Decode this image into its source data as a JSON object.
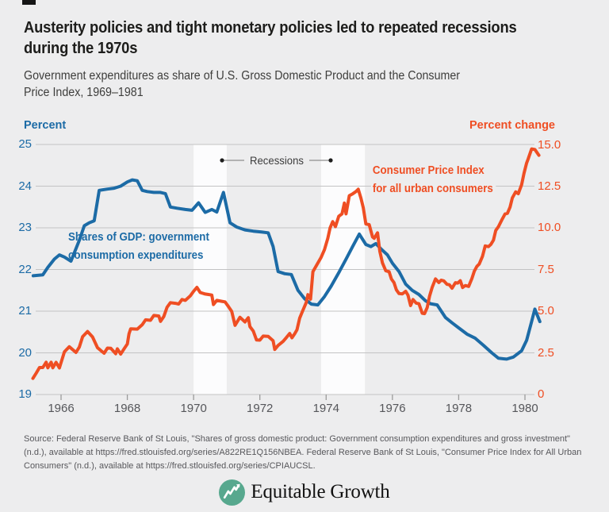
{
  "chart_data": {
    "type": "line",
    "title": "Austerity policies and tight monetary policies led to repeated recessions\nduring the 1970s",
    "subtitle": "Government expenditures as share of U.S. Gross Domestic Product and the Consumer\nPrice Index, 1969–1981",
    "grid": true,
    "legend_position": "annotated-on-plot",
    "x_axis": {
      "ticks": [
        1966,
        1968,
        1970,
        1972,
        1974,
        1976,
        1978,
        1980
      ],
      "range": [
        1965.1,
        1980.6
      ]
    },
    "left_axis": {
      "label": "Percent",
      "ticks": [
        25,
        24,
        23,
        22,
        21,
        20,
        19
      ],
      "range": [
        19,
        25
      ],
      "color": "#1c6ba6"
    },
    "right_axis": {
      "label": "Percent change",
      "ticks": [
        "15.0",
        "12.5",
        "10.0",
        "7.5",
        "5.0",
        "2.5",
        "0"
      ],
      "range": [
        0,
        15
      ],
      "color": "#ef4e23"
    },
    "recession_bands": [
      [
        1970.0,
        1971.0
      ],
      [
        1973.85,
        1975.17
      ]
    ],
    "annotations": {
      "recessions_label": "Recessions",
      "gdp_label": "Shares of GDP: government\nconsumption expenditures",
      "cpi_label": "Consumer Price Index\nfor all urban consumers"
    },
    "series": [
      {
        "name": "Shares of GDP: government consumption expenditures",
        "axis": "left",
        "color": "#1c6ba6",
        "data": [
          [
            1965.16,
            21.85
          ],
          [
            1965.45,
            21.87
          ],
          [
            1965.6,
            22.05
          ],
          [
            1965.8,
            22.25
          ],
          [
            1965.95,
            22.35
          ],
          [
            1966.1,
            22.3
          ],
          [
            1966.3,
            22.2
          ],
          [
            1966.55,
            22.7
          ],
          [
            1966.7,
            23.05
          ],
          [
            1966.85,
            23.12
          ],
          [
            1967.0,
            23.17
          ],
          [
            1967.15,
            23.9
          ],
          [
            1967.4,
            23.93
          ],
          [
            1967.6,
            23.95
          ],
          [
            1967.8,
            24.0
          ],
          [
            1968.0,
            24.1
          ],
          [
            1968.15,
            24.15
          ],
          [
            1968.3,
            24.13
          ],
          [
            1968.45,
            23.9
          ],
          [
            1968.6,
            23.87
          ],
          [
            1968.8,
            23.85
          ],
          [
            1969.0,
            23.85
          ],
          [
            1969.15,
            23.82
          ],
          [
            1969.3,
            23.5
          ],
          [
            1969.5,
            23.47
          ],
          [
            1969.75,
            23.44
          ],
          [
            1969.95,
            23.42
          ],
          [
            1970.15,
            23.6
          ],
          [
            1970.35,
            23.37
          ],
          [
            1970.55,
            23.44
          ],
          [
            1970.7,
            23.38
          ],
          [
            1970.9,
            23.85
          ],
          [
            1971.1,
            23.12
          ],
          [
            1971.3,
            23.02
          ],
          [
            1971.55,
            22.95
          ],
          [
            1971.8,
            22.92
          ],
          [
            1972.05,
            22.9
          ],
          [
            1972.25,
            22.88
          ],
          [
            1972.4,
            22.55
          ],
          [
            1972.55,
            21.95
          ],
          [
            1972.75,
            21.9
          ],
          [
            1972.95,
            21.88
          ],
          [
            1973.15,
            21.5
          ],
          [
            1973.35,
            21.3
          ],
          [
            1973.55,
            21.17
          ],
          [
            1973.75,
            21.15
          ],
          [
            1973.95,
            21.35
          ],
          [
            1974.15,
            21.6
          ],
          [
            1974.4,
            21.95
          ],
          [
            1974.6,
            22.25
          ],
          [
            1974.8,
            22.55
          ],
          [
            1975.0,
            22.85
          ],
          [
            1975.2,
            22.6
          ],
          [
            1975.35,
            22.55
          ],
          [
            1975.5,
            22.62
          ],
          [
            1975.65,
            22.5
          ],
          [
            1975.85,
            22.35
          ],
          [
            1976.0,
            22.15
          ],
          [
            1976.2,
            21.95
          ],
          [
            1976.4,
            21.65
          ],
          [
            1976.6,
            21.5
          ],
          [
            1976.8,
            21.4
          ],
          [
            1977.0,
            21.25
          ],
          [
            1977.15,
            21.18
          ],
          [
            1977.35,
            21.15
          ],
          [
            1977.6,
            20.85
          ],
          [
            1977.8,
            20.72
          ],
          [
            1978.0,
            20.6
          ],
          [
            1978.25,
            20.45
          ],
          [
            1978.5,
            20.35
          ],
          [
            1978.75,
            20.18
          ],
          [
            1979.0,
            20.0
          ],
          [
            1979.2,
            19.87
          ],
          [
            1979.45,
            19.85
          ],
          [
            1979.65,
            19.9
          ],
          [
            1979.9,
            20.05
          ],
          [
            1980.05,
            20.3
          ],
          [
            1980.2,
            20.75
          ],
          [
            1980.3,
            21.05
          ],
          [
            1980.45,
            20.75
          ]
        ]
      },
      {
        "name": "Consumer Price Index for all urban consumers",
        "axis": "right",
        "color": "#ef4e23",
        "data": [
          [
            1965.15,
            0.97
          ],
          [
            1965.25,
            1.29
          ],
          [
            1965.35,
            1.62
          ],
          [
            1965.45,
            1.62
          ],
          [
            1965.55,
            1.94
          ],
          [
            1965.6,
            1.61
          ],
          [
            1965.7,
            1.94
          ],
          [
            1965.75,
            1.61
          ],
          [
            1965.85,
            1.93
          ],
          [
            1965.95,
            1.6
          ],
          [
            1966.0,
            1.92
          ],
          [
            1966.1,
            2.56
          ],
          [
            1966.25,
            2.87
          ],
          [
            1966.45,
            2.53
          ],
          [
            1966.55,
            2.85
          ],
          [
            1966.65,
            3.48
          ],
          [
            1966.8,
            3.79
          ],
          [
            1966.95,
            3.46
          ],
          [
            1967.1,
            2.81
          ],
          [
            1967.3,
            2.48
          ],
          [
            1967.4,
            2.79
          ],
          [
            1967.5,
            2.78
          ],
          [
            1967.65,
            2.45
          ],
          [
            1967.7,
            2.75
          ],
          [
            1967.8,
            2.43
          ],
          [
            1967.9,
            2.74
          ],
          [
            1968.0,
            3.04
          ],
          [
            1968.05,
            3.65
          ],
          [
            1968.1,
            3.95
          ],
          [
            1968.3,
            3.93
          ],
          [
            1968.45,
            4.2
          ],
          [
            1968.55,
            4.49
          ],
          [
            1968.7,
            4.46
          ],
          [
            1968.8,
            4.75
          ],
          [
            1968.95,
            4.72
          ],
          [
            1969.0,
            4.4
          ],
          [
            1969.1,
            4.68
          ],
          [
            1969.2,
            5.25
          ],
          [
            1969.3,
            5.52
          ],
          [
            1969.45,
            5.48
          ],
          [
            1969.55,
            5.44
          ],
          [
            1969.65,
            5.71
          ],
          [
            1969.75,
            5.66
          ],
          [
            1969.9,
            5.93
          ],
          [
            1970.0,
            6.2
          ],
          [
            1970.1,
            6.44
          ],
          [
            1970.2,
            6.13
          ],
          [
            1970.35,
            6.04
          ],
          [
            1970.45,
            6.01
          ],
          [
            1970.55,
            5.98
          ],
          [
            1970.6,
            5.41
          ],
          [
            1970.7,
            5.66
          ],
          [
            1970.85,
            5.6
          ],
          [
            1970.95,
            5.57
          ],
          [
            1971.05,
            5.29
          ],
          [
            1971.15,
            5.0
          ],
          [
            1971.25,
            4.16
          ],
          [
            1971.4,
            4.64
          ],
          [
            1971.55,
            4.36
          ],
          [
            1971.65,
            4.62
          ],
          [
            1971.7,
            4.08
          ],
          [
            1971.8,
            3.81
          ],
          [
            1971.9,
            3.28
          ],
          [
            1972.0,
            3.27
          ],
          [
            1972.1,
            3.51
          ],
          [
            1972.25,
            3.49
          ],
          [
            1972.4,
            3.23
          ],
          [
            1972.45,
            2.71
          ],
          [
            1972.55,
            2.95
          ],
          [
            1972.7,
            3.19
          ],
          [
            1972.8,
            3.42
          ],
          [
            1972.9,
            3.67
          ],
          [
            1972.97,
            3.41
          ],
          [
            1973.05,
            3.65
          ],
          [
            1973.12,
            3.89
          ],
          [
            1973.2,
            4.59
          ],
          [
            1973.3,
            5.06
          ],
          [
            1973.4,
            5.53
          ],
          [
            1973.45,
            6.0
          ],
          [
            1973.53,
            5.73
          ],
          [
            1973.6,
            7.38
          ],
          [
            1973.72,
            7.8
          ],
          [
            1973.85,
            8.25
          ],
          [
            1973.95,
            8.71
          ],
          [
            1974.05,
            9.39
          ],
          [
            1974.12,
            10.02
          ],
          [
            1974.2,
            10.39
          ],
          [
            1974.28,
            10.09
          ],
          [
            1974.38,
            10.71
          ],
          [
            1974.48,
            10.86
          ],
          [
            1974.55,
            11.51
          ],
          [
            1974.6,
            10.86
          ],
          [
            1974.7,
            11.95
          ],
          [
            1974.8,
            12.06
          ],
          [
            1974.9,
            12.2
          ],
          [
            1974.97,
            12.34
          ],
          [
            1975.05,
            11.8
          ],
          [
            1975.12,
            11.23
          ],
          [
            1975.2,
            10.25
          ],
          [
            1975.3,
            10.21
          ],
          [
            1975.4,
            9.47
          ],
          [
            1975.45,
            9.39
          ],
          [
            1975.55,
            9.72
          ],
          [
            1975.62,
            8.6
          ],
          [
            1975.7,
            7.91
          ],
          [
            1975.8,
            7.44
          ],
          [
            1975.9,
            7.38
          ],
          [
            1975.97,
            6.94
          ],
          [
            1976.05,
            6.72
          ],
          [
            1976.12,
            6.29
          ],
          [
            1976.2,
            6.07
          ],
          [
            1976.3,
            6.05
          ],
          [
            1976.4,
            6.2
          ],
          [
            1976.47,
            5.97
          ],
          [
            1976.55,
            5.35
          ],
          [
            1976.62,
            5.71
          ],
          [
            1976.72,
            5.49
          ],
          [
            1976.8,
            5.46
          ],
          [
            1976.9,
            4.88
          ],
          [
            1976.97,
            4.86
          ],
          [
            1977.05,
            5.22
          ],
          [
            1977.12,
            5.91
          ],
          [
            1977.2,
            6.44
          ],
          [
            1977.3,
            6.95
          ],
          [
            1977.4,
            6.73
          ],
          [
            1977.47,
            6.87
          ],
          [
            1977.55,
            6.83
          ],
          [
            1977.65,
            6.62
          ],
          [
            1977.72,
            6.6
          ],
          [
            1977.8,
            6.39
          ],
          [
            1977.9,
            6.72
          ],
          [
            1977.97,
            6.7
          ],
          [
            1978.05,
            6.84
          ],
          [
            1978.12,
            6.43
          ],
          [
            1978.2,
            6.55
          ],
          [
            1978.3,
            6.5
          ],
          [
            1978.4,
            6.97
          ],
          [
            1978.47,
            7.41
          ],
          [
            1978.55,
            7.7
          ],
          [
            1978.62,
            7.84
          ],
          [
            1978.72,
            8.31
          ],
          [
            1978.8,
            8.93
          ],
          [
            1978.9,
            8.89
          ],
          [
            1978.97,
            9.02
          ],
          [
            1979.05,
            9.28
          ],
          [
            1979.12,
            9.86
          ],
          [
            1979.2,
            10.09
          ],
          [
            1979.3,
            10.49
          ],
          [
            1979.4,
            10.85
          ],
          [
            1979.47,
            10.89
          ],
          [
            1979.55,
            11.26
          ],
          [
            1979.62,
            11.82
          ],
          [
            1979.72,
            12.18
          ],
          [
            1979.8,
            12.07
          ],
          [
            1979.9,
            12.61
          ],
          [
            1979.97,
            13.29
          ],
          [
            1980.05,
            13.91
          ],
          [
            1980.1,
            14.18
          ],
          [
            1980.2,
            14.76
          ],
          [
            1980.3,
            14.73
          ],
          [
            1980.42,
            14.38
          ]
        ]
      }
    ]
  },
  "source": {
    "text": "Source:  Federal Reserve Bank of St Louis, \"Shares of gross domestic product: Government consumption expenditures and gross investment\"\n(n.d.), available at https://fred.stlouisfed.org/series/A822RE1Q156NBEA. Federal Reserve Bank of St Louis, \"Consumer Price Index for All Urban\nConsumers\" (n.d.), available at https://fred.stlouisfed.org/series/CPIAUCSL."
  },
  "logo": {
    "text": "Equitable Growth",
    "icon_color": "#57a88e"
  }
}
